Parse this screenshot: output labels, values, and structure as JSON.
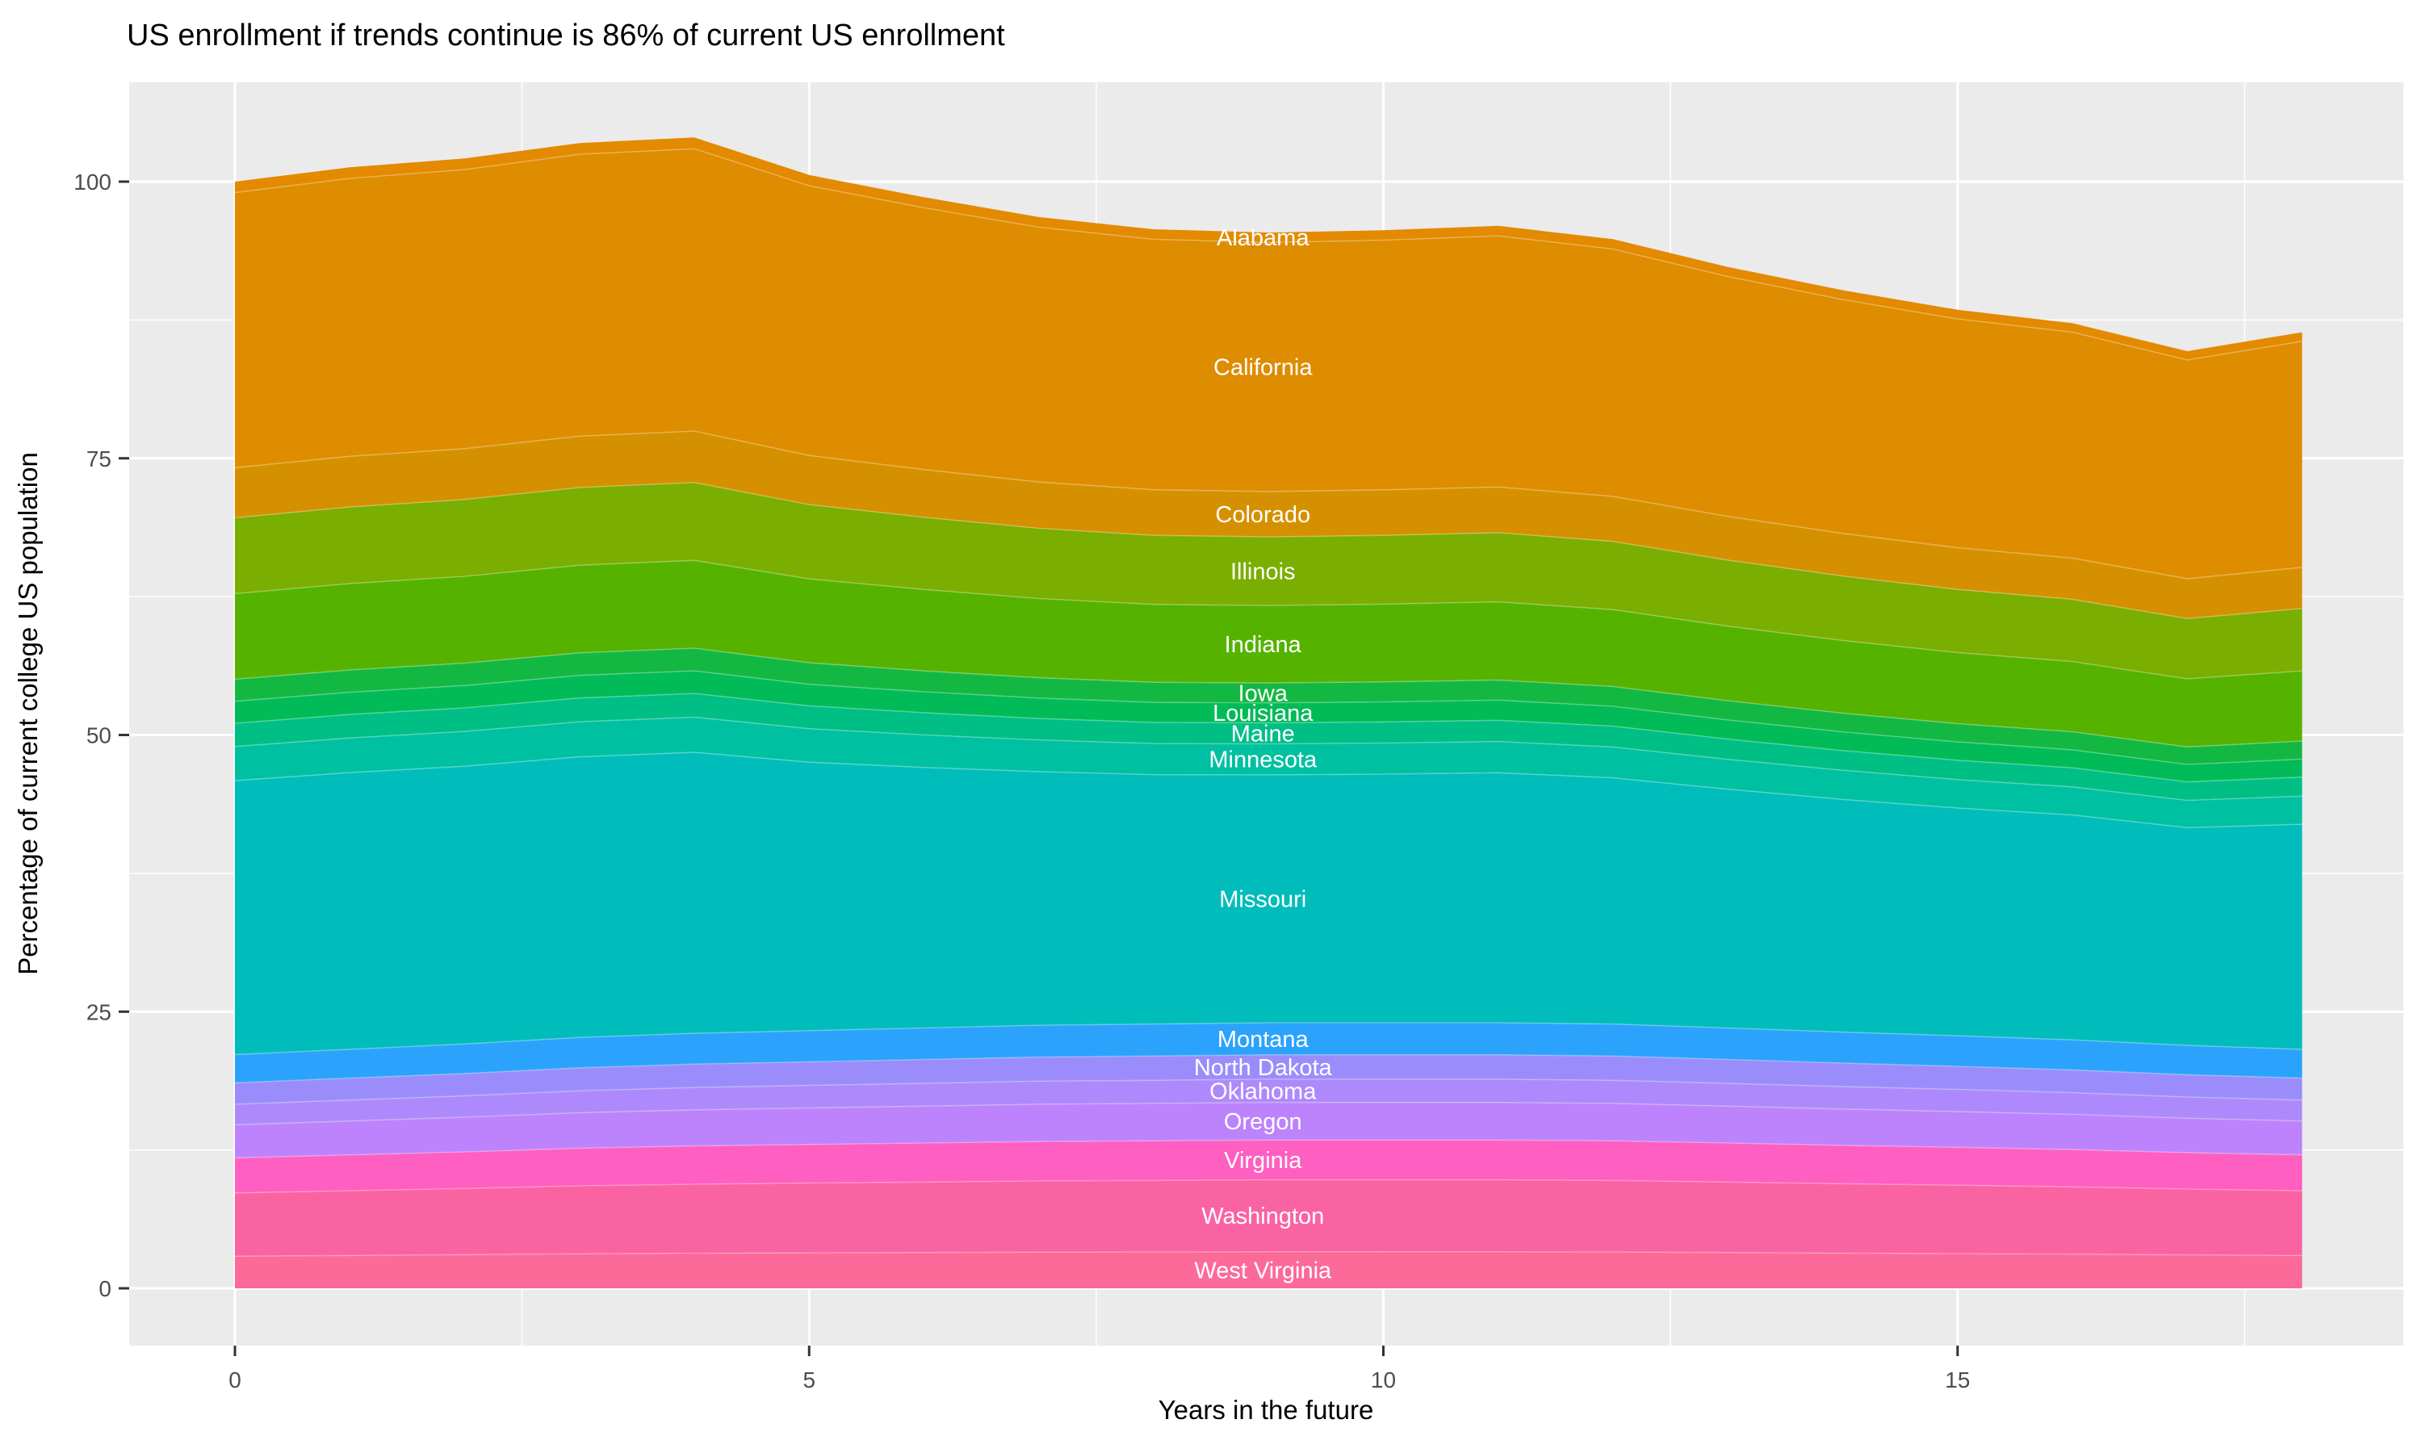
{
  "chart": {
    "title": "US enrollment if trends continue is 86% of current US enrollment",
    "x_axis_title": "Years in the future",
    "y_axis_title": "Percentage of current college US population"
  },
  "colors": {
    "panel_background": "#EBEBEB",
    "gridline": "#FFFFFF",
    "tick_mark": "#333333",
    "tick_label_text": "#4D4D4D",
    "title_text": "#000000",
    "state_label_text": "#FFFFFF",
    "page_background": "#FFFFFF"
  },
  "chart_data": {
    "type": "area",
    "stacked": true,
    "title": "US enrollment if trends continue is 86% of current US enrollment",
    "xlabel": "Years in the future",
    "ylabel": "Percentage of current college US population",
    "xlim": [
      0,
      18
    ],
    "ylim": [
      0,
      104
    ],
    "x_ticks": [
      0,
      5,
      10,
      15
    ],
    "y_ticks": [
      0,
      25,
      50,
      75,
      100
    ],
    "grid": "white major and minor gridlines on grey panel, minor at 2.5/12.5 intervals",
    "legend_position": "none (states labeled directly on bands near x=9)",
    "label_x": 9,
    "x": [
      0,
      1,
      2,
      3,
      4,
      5,
      6,
      7,
      8,
      9,
      10,
      11,
      12,
      13,
      14,
      15,
      16,
      17,
      18
    ],
    "totals": [
      100.0,
      101.3,
      102.1,
      103.5,
      104.0,
      100.6,
      98.6,
      96.8,
      95.7,
      95.4,
      95.6,
      96.0,
      94.8,
      92.3,
      90.2,
      88.4,
      87.2,
      84.7,
      86.4
    ],
    "series": [
      {
        "name": "Alabama",
        "color": "#E38A00",
        "values": [
          0.99,
          1.0,
          1.01,
          1.02,
          1.02,
          0.97,
          0.95,
          0.92,
          0.91,
          0.9,
          0.9,
          0.91,
          0.89,
          0.87,
          0.85,
          0.83,
          0.82,
          0.79,
          0.82
        ]
      },
      {
        "name": "California",
        "color": "#DE8C00",
        "values": [
          24.86,
          25.11,
          25.22,
          25.47,
          25.51,
          24.37,
          23.66,
          23.02,
          22.63,
          22.5,
          22.56,
          22.69,
          22.35,
          21.67,
          21.13,
          20.67,
          20.41,
          19.77,
          20.42
        ]
      },
      {
        "name": "Colorado",
        "color": "#D59000",
        "values": [
          4.53,
          4.58,
          4.59,
          4.64,
          4.65,
          4.44,
          4.31,
          4.19,
          4.12,
          4.1,
          4.11,
          4.13,
          4.07,
          3.95,
          3.85,
          3.77,
          3.72,
          3.6,
          3.72
        ]
      },
      {
        "name": "Illinois",
        "color": "#7AAE00",
        "values": [
          6.85,
          6.92,
          6.95,
          7.02,
          7.03,
          6.71,
          6.52,
          6.34,
          6.24,
          6.2,
          6.22,
          6.25,
          6.16,
          5.97,
          5.82,
          5.7,
          5.62,
          5.45,
          5.63
        ]
      },
      {
        "name": "Indiana",
        "color": "#55B300",
        "values": [
          7.73,
          7.81,
          7.84,
          7.92,
          7.94,
          7.58,
          7.36,
          7.16,
          7.04,
          7.0,
          7.02,
          7.06,
          6.95,
          6.74,
          6.57,
          6.43,
          6.35,
          6.15,
          6.35
        ]
      },
      {
        "name": "Iowa",
        "color": "#13B843",
        "values": [
          1.99,
          2.01,
          2.02,
          2.04,
          2.04,
          1.95,
          1.89,
          1.84,
          1.81,
          1.8,
          1.81,
          1.82,
          1.79,
          1.73,
          1.69,
          1.65,
          1.63,
          1.58,
          1.63
        ]
      },
      {
        "name": "Louisiana",
        "color": "#00BB57",
        "values": [
          1.99,
          2.01,
          2.02,
          2.04,
          2.04,
          1.95,
          1.89,
          1.84,
          1.81,
          1.8,
          1.81,
          1.82,
          1.79,
          1.73,
          1.69,
          1.65,
          1.63,
          1.58,
          1.63
        ]
      },
      {
        "name": "Maine",
        "color": "#00BF85",
        "values": [
          2.1,
          2.12,
          2.13,
          2.15,
          2.15,
          2.06,
          2.0,
          1.94,
          1.91,
          1.9,
          1.91,
          1.92,
          1.89,
          1.83,
          1.78,
          1.75,
          1.72,
          1.67,
          1.72
        ]
      },
      {
        "name": "Minnesota",
        "color": "#00C0A2",
        "values": [
          3.09,
          3.13,
          3.14,
          3.17,
          3.17,
          3.03,
          2.94,
          2.86,
          2.82,
          2.8,
          2.81,
          2.82,
          2.78,
          2.7,
          2.63,
          2.57,
          2.54,
          2.46,
          2.54
        ]
      },
      {
        "name": "Missouri",
        "color": "#00BDBB",
        "values": [
          24.75,
          25.0,
          25.1,
          25.35,
          25.4,
          24.26,
          23.55,
          22.92,
          22.53,
          22.4,
          22.46,
          22.59,
          22.25,
          21.58,
          21.03,
          20.58,
          20.32,
          19.68,
          20.33
        ]
      },
      {
        "name": "Montana",
        "color": "#2BA3FC",
        "values": [
          2.55,
          2.61,
          2.67,
          2.74,
          2.78,
          2.81,
          2.84,
          2.87,
          2.89,
          2.9,
          2.9,
          2.9,
          2.89,
          2.84,
          2.8,
          2.76,
          2.71,
          2.65,
          2.61
        ]
      },
      {
        "name": "North Dakota",
        "color": "#9A8DFB",
        "values": [
          1.94,
          1.98,
          2.02,
          2.08,
          2.11,
          2.13,
          2.16,
          2.18,
          2.19,
          2.2,
          2.2,
          2.2,
          2.19,
          2.16,
          2.12,
          2.09,
          2.06,
          2.01,
          1.98
        ]
      },
      {
        "name": "Oklahoma",
        "color": "#AE89FB",
        "values": [
          1.85,
          1.89,
          1.93,
          1.98,
          2.02,
          2.04,
          2.06,
          2.08,
          2.09,
          2.1,
          2.1,
          2.1,
          2.09,
          2.06,
          2.03,
          2.0,
          1.96,
          1.92,
          1.89
        ]
      },
      {
        "name": "Oregon",
        "color": "#BC83FC",
        "values": [
          2.99,
          3.06,
          3.13,
          3.21,
          3.26,
          3.3,
          3.33,
          3.37,
          3.38,
          3.4,
          3.4,
          3.4,
          3.38,
          3.33,
          3.28,
          3.23,
          3.18,
          3.11,
          3.06
        ]
      },
      {
        "name": "Virginia",
        "color": "#FE5FC0",
        "values": [
          3.17,
          3.24,
          3.31,
          3.4,
          3.46,
          3.49,
          3.53,
          3.56,
          3.58,
          3.6,
          3.6,
          3.6,
          3.58,
          3.53,
          3.47,
          3.42,
          3.37,
          3.29,
          3.24
        ]
      },
      {
        "name": "Washington",
        "color": "#FA63A2",
        "values": [
          5.72,
          5.85,
          5.98,
          6.14,
          6.24,
          6.31,
          6.37,
          6.44,
          6.47,
          6.5,
          6.5,
          6.5,
          6.47,
          6.37,
          6.27,
          6.18,
          6.08,
          5.95,
          5.85
        ]
      },
      {
        "name": "West Virginia",
        "color": "#FB6A99",
        "values": [
          2.9,
          2.97,
          3.04,
          3.12,
          3.17,
          3.2,
          3.23,
          3.27,
          3.28,
          3.3,
          3.3,
          3.3,
          3.28,
          3.23,
          3.18,
          3.14,
          3.09,
          3.02,
          2.97
        ]
      }
    ]
  }
}
